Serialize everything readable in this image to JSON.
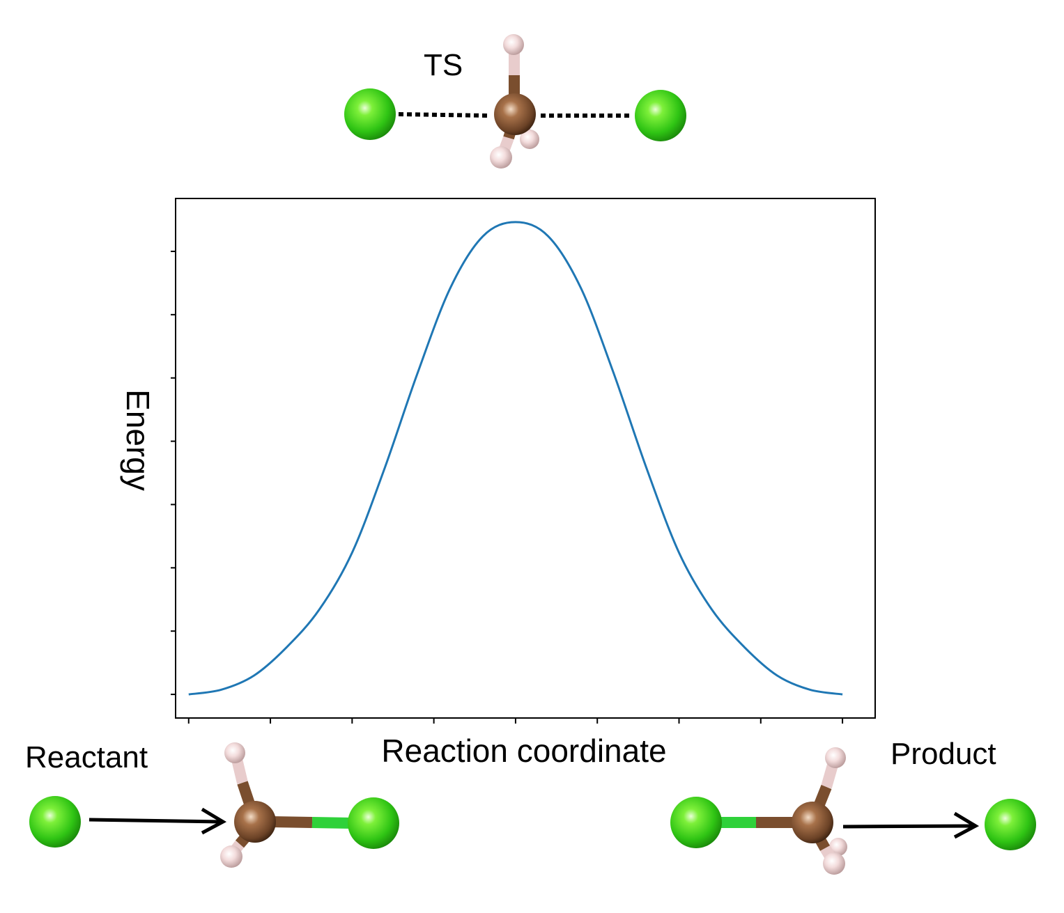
{
  "labels": {
    "ts": "TS",
    "reactant": "Reactant",
    "product": "Product"
  },
  "chart_data": {
    "type": "line",
    "xlabel": "Reaction coordinate",
    "ylabel": "Energy",
    "grid": false,
    "x": [
      0,
      0.05,
      0.1,
      0.15,
      0.2,
      0.25,
      0.3,
      0.35,
      0.4,
      0.45,
      0.5,
      0.55,
      0.6,
      0.65,
      0.7,
      0.75,
      0.8,
      0.85,
      0.9,
      0.95,
      1.0
    ],
    "series": [
      {
        "values": [
          0.0,
          0.01,
          0.04,
          0.1,
          0.18,
          0.3,
          0.48,
          0.68,
          0.86,
          0.97,
          1.0,
          0.97,
          0.86,
          0.68,
          0.48,
          0.3,
          0.18,
          0.1,
          0.04,
          0.01,
          0.0
        ]
      }
    ],
    "xlim": [
      -0.02,
      1.05
    ],
    "ylim": [
      -0.05,
      1.05
    ]
  },
  "colors": {
    "curve": "#1f77b4",
    "chlorine": "#33cc1a",
    "carbon": "#8a5a3a",
    "hydrogen": "#f2d6d6",
    "bond_cl": "#2fd13a"
  }
}
